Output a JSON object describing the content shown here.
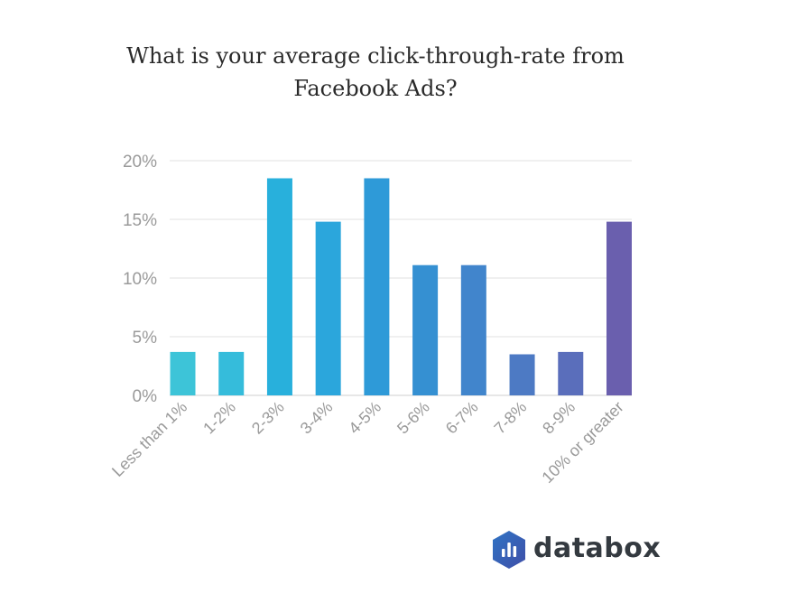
{
  "chart_data": {
    "type": "bar",
    "title": "What is your average click-through-rate from Facebook Ads?",
    "xlabel": "",
    "ylabel": "",
    "categories": [
      "Less than 1%",
      "1-2%",
      "2-3%",
      "3-4%",
      "4-5%",
      "5-6%",
      "6-7%",
      "7-8%",
      "8-9%",
      "10% or greater"
    ],
    "values": [
      3.7,
      3.7,
      18.5,
      14.8,
      18.5,
      11.1,
      11.1,
      3.5,
      3.7,
      14.8
    ],
    "ylim": [
      0,
      20
    ],
    "yticks": [
      0,
      5,
      10,
      15,
      20
    ],
    "ytick_labels": [
      "0%",
      "5%",
      "10%",
      "15%",
      "20%"
    ],
    "grid": true,
    "legend": "none",
    "colors": [
      "#3dc4d8",
      "#35bcdb",
      "#28b0dc",
      "#2ba6dc",
      "#2e9ad8",
      "#3590d2",
      "#4185cc",
      "#4d7ac4",
      "#5a6ebb",
      "#6a5fae"
    ]
  },
  "brand": {
    "name": "databox",
    "color": "#343a40",
    "icon": "databox-logo-icon",
    "icon_colors": [
      "#2f73c4",
      "#3f4fa8"
    ]
  }
}
